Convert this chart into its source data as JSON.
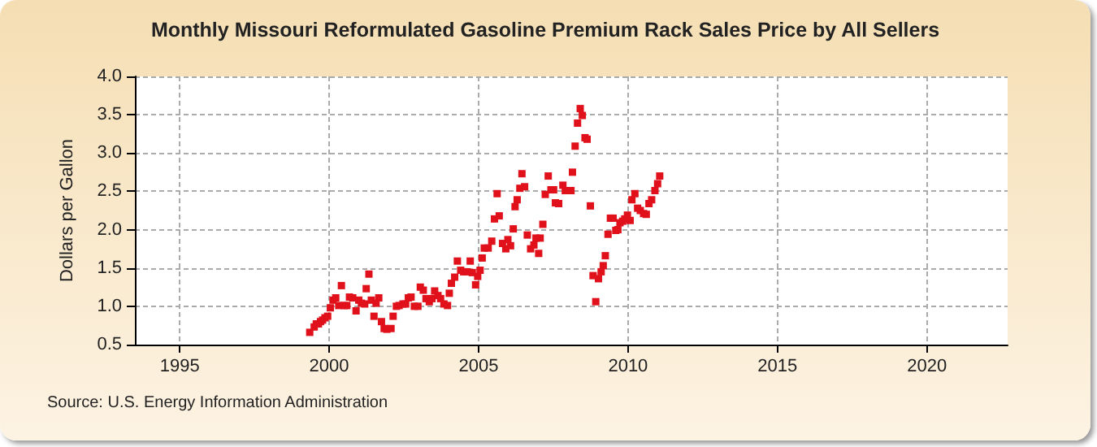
{
  "chart_data": {
    "type": "scatter",
    "title": "Monthly Missouri Reformulated Gasoline Premium Rack Sales Price by All Sellers",
    "ylabel": "Dollars per Gallon",
    "annotations": [
      "Source: U.S. Energy Information Administration"
    ],
    "x": [
      1999.35,
      1999.5,
      1999.57,
      1999.64,
      1999.71,
      1999.78,
      1999.86,
      1999.95,
      2000.04,
      2000.13,
      2000.22,
      2000.32,
      2000.41,
      2000.5,
      2000.59,
      2000.68,
      2000.79,
      2000.9,
      2000.99,
      2001.08,
      2001.19,
      2001.24,
      2001.33,
      2001.41,
      2001.5,
      2001.57,
      2001.66,
      2001.75,
      2001.84,
      2001.93,
      2002.07,
      2002.14,
      2002.25,
      2002.34,
      2002.47,
      2002.56,
      2002.65,
      2002.74,
      2002.85,
      2002.97,
      2003.05,
      2003.15,
      2003.24,
      2003.35,
      2003.44,
      2003.53,
      2003.64,
      2003.73,
      2003.84,
      2003.96,
      2004.02,
      2004.09,
      2004.2,
      2004.29,
      2004.4,
      2004.5,
      2004.61,
      2004.72,
      2004.79,
      2004.9,
      2004.97,
      2005.05,
      2005.12,
      2005.19,
      2005.32,
      2005.44,
      2005.53,
      2005.62,
      2005.69,
      2005.8,
      2005.91,
      2005.98,
      2006.07,
      2006.16,
      2006.22,
      2006.29,
      2006.38,
      2006.45,
      2006.54,
      2006.63,
      2006.74,
      2006.85,
      2006.92,
      2007.01,
      2007.06,
      2007.15,
      2007.23,
      2007.33,
      2007.42,
      2007.51,
      2007.57,
      2007.68,
      2007.82,
      2007.9,
      2008.09,
      2008.14,
      2008.23,
      2008.31,
      2008.4,
      2008.47,
      2008.56,
      2008.63,
      2008.74,
      2008.83,
      2008.92,
      2009.01,
      2009.1,
      2009.17,
      2009.24,
      2009.33,
      2009.41,
      2009.5,
      2009.59,
      2009.66,
      2009.73,
      2009.82,
      2009.89,
      2009.98,
      2010.07,
      2010.13,
      2010.23,
      2010.32,
      2010.41,
      2010.52,
      2010.61,
      2010.7,
      2010.79,
      2010.9,
      2010.99,
      2011.06
    ],
    "series": [
      {
        "color": "#e0111b",
        "values": [
          0.66,
          0.73,
          0.77,
          0.77,
          0.8,
          0.82,
          0.85,
          0.87,
          0.98,
          1.08,
          1.11,
          1.01,
          1.27,
          1.01,
          1.01,
          1.12,
          1.11,
          0.94,
          1.08,
          1.04,
          1.03,
          1.23,
          1.42,
          1.08,
          0.87,
          1.04,
          1.11,
          0.8,
          0.71,
          0.7,
          0.71,
          0.87,
          1.0,
          1.01,
          1.03,
          1.03,
          1.11,
          1.12,
          1.0,
          1.0,
          1.25,
          1.21,
          1.1,
          1.06,
          1.1,
          1.2,
          1.14,
          1.1,
          1.03,
          1.01,
          1.17,
          1.3,
          1.38,
          1.59,
          1.47,
          1.45,
          1.45,
          1.59,
          1.44,
          1.28,
          1.39,
          1.47,
          1.63,
          1.76,
          1.76,
          1.85,
          2.14,
          2.47,
          2.18,
          1.82,
          1.75,
          1.87,
          1.79,
          2.01,
          2.3,
          2.39,
          2.54,
          2.73,
          2.56,
          1.93,
          1.75,
          1.8,
          1.89,
          1.69,
          1.89,
          2.07,
          2.46,
          2.7,
          2.52,
          2.52,
          2.35,
          2.34,
          2.58,
          2.51,
          2.51,
          2.75,
          3.09,
          3.39,
          3.58,
          3.49,
          3.2,
          3.18,
          2.31,
          1.4,
          1.06,
          1.36,
          1.45,
          1.53,
          1.66,
          1.94,
          2.15,
          2.15,
          1.99,
          2.0,
          2.09,
          2.11,
          2.14,
          2.19,
          2.12,
          2.39,
          2.47,
          2.28,
          2.25,
          2.21,
          2.2,
          2.34,
          2.39,
          2.51,
          2.6,
          2.7
        ]
      }
    ],
    "xlim": [
      1993.5,
      2022.7
    ],
    "xticks": [
      1995,
      2000,
      2005,
      2010,
      2015,
      2020
    ],
    "ylim": [
      0.5,
      4.0
    ],
    "yticks": [
      {
        "value": 0.5,
        "label": "0.5"
      },
      {
        "value": 1,
        "label": "1.0"
      },
      {
        "value": 1.5,
        "label": "1.5"
      },
      {
        "value": 2,
        "label": "2.0"
      },
      {
        "value": 2.5,
        "label": "2.5"
      },
      {
        "value": 3,
        "label": "3.0"
      },
      {
        "value": 3.5,
        "label": "3.5"
      },
      {
        "value": 4,
        "label": "4.0"
      }
    ],
    "grid": true,
    "marker": "square"
  }
}
